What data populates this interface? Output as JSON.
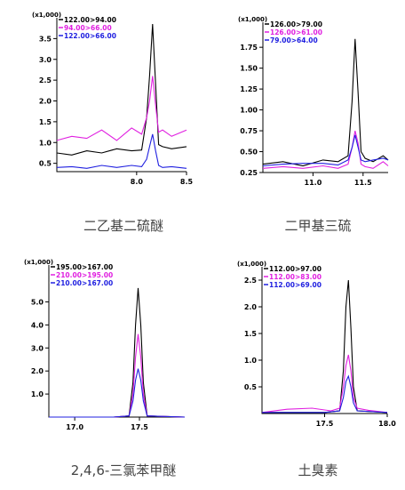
{
  "colors": {
    "axis": "#000000",
    "black": "#000000",
    "magenta": "#e020e0",
    "blue": "#2020e0",
    "background": "#ffffff"
  },
  "captions": [
    "二乙基二硫醚",
    "二甲基三硫",
    "2,4,6-三氯苯甲醚",
    "土臭素"
  ],
  "chart_data": [
    {
      "type": "line",
      "caption": "二乙基二硫醚",
      "multiplier": "(x1,000)",
      "xlim": [
        7.2,
        8.5
      ],
      "ylim": [
        0.3,
        4.0
      ],
      "xticks": [
        8.0,
        8.5
      ],
      "xtick_labels": [
        "8.0",
        "8.5"
      ],
      "yticks": [
        0.5,
        1.0,
        1.5,
        2.0,
        2.5,
        3.0,
        3.5
      ],
      "ytick_labels": [
        "0.5",
        "1.0",
        "1.5",
        "2.0",
        "2.5",
        "3.0",
        "3.5"
      ],
      "series": [
        {
          "name": "122.00>94.00",
          "color": "black",
          "x": [
            7.2,
            7.35,
            7.5,
            7.65,
            7.8,
            7.95,
            8.05,
            8.1,
            8.13,
            8.16,
            8.19,
            8.22,
            8.26,
            8.35,
            8.5
          ],
          "y": [
            0.75,
            0.7,
            0.8,
            0.75,
            0.85,
            0.8,
            0.82,
            1.6,
            2.6,
            3.85,
            2.4,
            0.95,
            0.9,
            0.85,
            0.9
          ]
        },
        {
          "name": "94.00>66.00",
          "color": "magenta",
          "x": [
            7.2,
            7.35,
            7.5,
            7.65,
            7.8,
            7.95,
            8.05,
            8.1,
            8.13,
            8.16,
            8.19,
            8.22,
            8.26,
            8.35,
            8.5
          ],
          "y": [
            1.05,
            1.15,
            1.1,
            1.3,
            1.05,
            1.35,
            1.2,
            1.6,
            2.0,
            2.6,
            1.9,
            1.25,
            1.3,
            1.15,
            1.3
          ]
        },
        {
          "name": "122.00>66.00",
          "color": "blue",
          "x": [
            7.2,
            7.35,
            7.5,
            7.65,
            7.8,
            7.95,
            8.05,
            8.1,
            8.13,
            8.16,
            8.19,
            8.22,
            8.26,
            8.35,
            8.5
          ],
          "y": [
            0.4,
            0.42,
            0.38,
            0.45,
            0.4,
            0.45,
            0.42,
            0.6,
            0.9,
            1.2,
            0.8,
            0.45,
            0.4,
            0.42,
            0.38
          ]
        }
      ]
    },
    {
      "type": "line",
      "caption": "二甲基三硫",
      "multiplier": "(x1,000)",
      "xlim": [
        10.5,
        11.75
      ],
      "ylim": [
        0.25,
        2.05
      ],
      "xticks": [
        11.0,
        11.5
      ],
      "xtick_labels": [
        "11.0",
        "11.5"
      ],
      "yticks": [
        0.25,
        0.5,
        0.75,
        1.0,
        1.25,
        1.5,
        1.75
      ],
      "ytick_labels": [
        "0.25",
        "0.50",
        "0.75",
        "1.00",
        "1.25",
        "1.50",
        "1.75"
      ],
      "series": [
        {
          "name": "126.00>79.00",
          "color": "black",
          "x": [
            10.5,
            10.7,
            10.9,
            11.1,
            11.25,
            11.35,
            11.39,
            11.42,
            11.45,
            11.48,
            11.52,
            11.6,
            11.7,
            11.75
          ],
          "y": [
            0.35,
            0.38,
            0.33,
            0.4,
            0.38,
            0.45,
            1.1,
            1.85,
            1.2,
            0.5,
            0.42,
            0.38,
            0.45,
            0.4
          ]
        },
        {
          "name": "126.00>61.00",
          "color": "magenta",
          "x": [
            10.5,
            10.7,
            10.9,
            11.1,
            11.25,
            11.35,
            11.39,
            11.42,
            11.45,
            11.48,
            11.52,
            11.6,
            11.7,
            11.75
          ],
          "y": [
            0.3,
            0.32,
            0.3,
            0.33,
            0.3,
            0.35,
            0.55,
            0.75,
            0.6,
            0.35,
            0.32,
            0.3,
            0.38,
            0.33
          ]
        },
        {
          "name": "79.00>64.00",
          "color": "blue",
          "x": [
            10.5,
            10.7,
            10.9,
            11.1,
            11.25,
            11.35,
            11.39,
            11.42,
            11.45,
            11.48,
            11.52,
            11.6,
            11.7,
            11.75
          ],
          "y": [
            0.33,
            0.35,
            0.36,
            0.36,
            0.34,
            0.4,
            0.55,
            0.7,
            0.55,
            0.4,
            0.38,
            0.4,
            0.42,
            0.4
          ]
        }
      ]
    },
    {
      "type": "line",
      "caption": "2,4,6-三氯苯甲醚",
      "multiplier": "(x1,000)",
      "xlim": [
        16.8,
        17.85
      ],
      "ylim": [
        0.0,
        6.6
      ],
      "xticks": [
        17.0,
        17.5
      ],
      "xtick_labels": [
        "17.0",
        "17.5"
      ],
      "yticks": [
        1.0,
        2.0,
        3.0,
        4.0,
        5.0
      ],
      "ytick_labels": [
        "1.0",
        "2.0",
        "3.0",
        "4.0",
        "5.0"
      ],
      "series": [
        {
          "name": "195.00>167.00",
          "color": "black",
          "x": [
            16.8,
            17.3,
            17.42,
            17.45,
            17.47,
            17.49,
            17.51,
            17.53,
            17.56,
            17.85
          ],
          "y": [
            0.0,
            0.0,
            0.05,
            1.5,
            4.0,
            5.6,
            4.0,
            1.5,
            0.05,
            0.0
          ]
        },
        {
          "name": "210.00>195.00",
          "color": "magenta",
          "x": [
            16.8,
            17.3,
            17.42,
            17.45,
            17.47,
            17.49,
            17.51,
            17.53,
            17.56,
            17.85
          ],
          "y": [
            0.0,
            0.0,
            0.05,
            1.0,
            2.6,
            3.6,
            2.6,
            1.0,
            0.05,
            0.0
          ]
        },
        {
          "name": "210.00>167.00",
          "color": "blue",
          "x": [
            16.8,
            17.3,
            17.42,
            17.45,
            17.47,
            17.49,
            17.51,
            17.53,
            17.56,
            17.85
          ],
          "y": [
            0.0,
            0.0,
            0.05,
            0.7,
            1.6,
            2.1,
            1.6,
            0.7,
            0.05,
            0.0
          ]
        }
      ]
    },
    {
      "type": "line",
      "caption": "土臭素",
      "multiplier": "(x1,000)",
      "xlim": [
        17.0,
        18.0
      ],
      "ylim": [
        0.0,
        2.75
      ],
      "xticks": [
        17.5,
        18.0
      ],
      "xtick_labels": [
        "17.5",
        "18.0"
      ],
      "yticks": [
        0.5,
        1.0,
        1.5,
        2.0,
        2.5
      ],
      "ytick_labels": [
        "0.5",
        "1.0",
        "1.5",
        "2.0",
        "2.5"
      ],
      "series": [
        {
          "name": "112.00>97.00",
          "color": "black",
          "x": [
            17.0,
            17.5,
            17.62,
            17.65,
            17.67,
            17.69,
            17.71,
            17.73,
            17.76,
            18.0
          ],
          "y": [
            0.02,
            0.02,
            0.05,
            0.8,
            2.0,
            2.5,
            1.6,
            0.5,
            0.05,
            0.02
          ]
        },
        {
          "name": "112.00>83.00",
          "color": "magenta",
          "x": [
            17.0,
            17.2,
            17.4,
            17.55,
            17.62,
            17.65,
            17.67,
            17.69,
            17.71,
            17.73,
            17.76,
            17.85,
            18.0
          ],
          "y": [
            0.02,
            0.08,
            0.1,
            0.05,
            0.1,
            0.5,
            0.9,
            1.1,
            0.8,
            0.3,
            0.1,
            0.06,
            0.02
          ]
        },
        {
          "name": "112.00>69.00",
          "color": "blue",
          "x": [
            17.0,
            17.5,
            17.62,
            17.65,
            17.67,
            17.69,
            17.71,
            17.73,
            17.76,
            18.0
          ],
          "y": [
            0.02,
            0.02,
            0.05,
            0.3,
            0.6,
            0.7,
            0.5,
            0.2,
            0.05,
            0.02
          ]
        }
      ]
    }
  ]
}
